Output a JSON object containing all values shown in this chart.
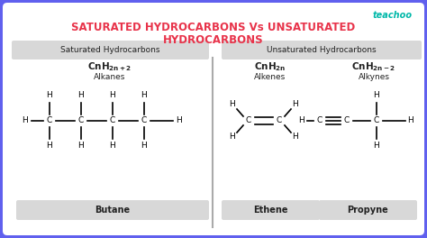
{
  "title_line1": "SATURATED HYDROCARBONS Vs UNSATURATED",
  "title_line2": "HYDROCARBONS",
  "title_color": "#e8334a",
  "bg_color": "#6060ee",
  "inner_bg": "#ffffff",
  "border_color": "#6060ee",
  "panel_bg": "#d8d8d8",
  "sat_header": "Saturated Hydrocarbons",
  "unsat_header": "Unsaturated Hydrocarbons",
  "sat_label": "Alkanes",
  "alkene_label": "Alkenes",
  "alkyne_label": "Alkynes",
  "butane_label": "Butane",
  "ethene_label": "Ethene",
  "propyne_label": "Propyne",
  "teachoo_color": "#00b8a9",
  "text_color": "#222222",
  "div_color": "#aaaaaa"
}
